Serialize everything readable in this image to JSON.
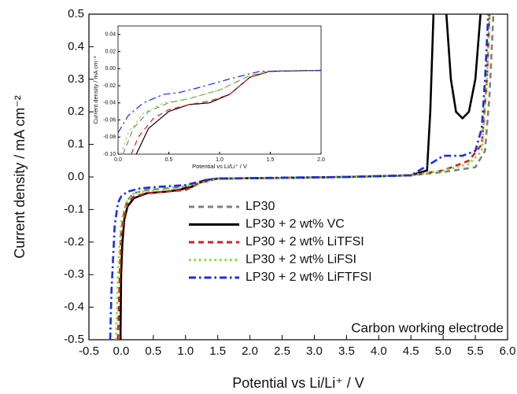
{
  "chart_data": [
    {
      "type": "line",
      "x_label": "Potential vs Li/Li⁺ / V",
      "y_label": "Current density / mA cm⁻²",
      "annotation": "Carbon working electrode",
      "legend": "center",
      "xlim": [
        -0.5,
        6.0
      ],
      "xticks": [
        -0.5,
        {
          "value": 0,
          "label": "0.0"
        },
        0.5,
        {
          "value": 1,
          "label": "1.0"
        },
        1.5,
        {
          "value": 2,
          "label": "2.0"
        },
        2.5,
        {
          "value": 3,
          "label": "3.0"
        },
        3.5,
        {
          "value": 4,
          "label": "4.0"
        },
        4.5,
        {
          "value": 5,
          "label": "5.0"
        },
        5.5,
        {
          "value": 6,
          "label": "6.0"
        }
      ],
      "ylim": [
        -0.5,
        0.5
      ],
      "yticks": [
        -0.5,
        -0.4,
        -0.3,
        -0.2,
        -0.1,
        {
          "value": 0,
          "label": "0.0"
        },
        0.1,
        0.2,
        0.3,
        0.4,
        0.5
      ],
      "series": [
        {
          "name": "LP30",
          "color": "#808080",
          "dash": "dash",
          "x": [
            -0.05,
            -0.02,
            0.0,
            0.05,
            0.1,
            0.2,
            0.4,
            0.7,
            1.0,
            1.3,
            1.5,
            2.5,
            3.5,
            4.5,
            5.0,
            5.5,
            5.65,
            5.72,
            5.78
          ],
          "values": [
            -0.5,
            -0.3,
            -0.17,
            -0.1,
            -0.07,
            -0.05,
            -0.04,
            -0.035,
            -0.03,
            -0.01,
            -0.005,
            -0.003,
            0,
            0.005,
            0.015,
            0.03,
            0.08,
            0.25,
            0.5
          ]
        },
        {
          "name": "LP30 + 2 wt% VC",
          "color": "#000000",
          "dash": "solid",
          "x": [
            -0.01,
            0.0,
            0.02,
            0.05,
            0.1,
            0.2,
            0.4,
            0.7,
            0.9,
            1.1,
            1.3,
            1.5,
            2.5,
            3.5,
            4.5,
            4.75,
            4.8,
            4.85,
            4.95,
            5.05,
            5.12,
            5.2,
            5.3,
            5.4,
            5.5,
            5.58
          ],
          "values": [
            -0.5,
            -0.3,
            -0.2,
            -0.13,
            -0.09,
            -0.065,
            -0.05,
            -0.045,
            -0.04,
            -0.03,
            -0.01,
            -0.005,
            -0.003,
            0,
            0.005,
            0.02,
            0.2,
            0.5,
            null,
            0.5,
            0.3,
            0.2,
            0.18,
            0.2,
            0.3,
            0.5
          ]
        },
        {
          "name": "LP30 + 2 wt% LiTFSI",
          "color": "#d42020",
          "dash": "dash",
          "x": [
            -0.05,
            -0.02,
            0.0,
            0.05,
            0.1,
            0.2,
            0.4,
            0.7,
            1.0,
            1.2,
            1.5,
            2.5,
            3.5,
            4.5,
            5.0,
            5.4,
            5.6,
            5.68,
            5.72
          ],
          "values": [
            -0.5,
            -0.3,
            -0.18,
            -0.12,
            -0.08,
            -0.06,
            -0.05,
            -0.045,
            -0.04,
            -0.02,
            -0.005,
            -0.003,
            0,
            0.005,
            0.02,
            0.05,
            0.1,
            0.3,
            0.5
          ]
        },
        {
          "name": "LP30 + 2 wt% LiFSI",
          "color": "#77e030",
          "dash": "dot",
          "x": [
            -0.08,
            -0.05,
            -0.02,
            0.0,
            0.05,
            0.1,
            0.2,
            0.5,
            0.8,
            1.2,
            1.5,
            2.5,
            3.5,
            4.5,
            5.0,
            5.4,
            5.6,
            5.68,
            5.72
          ],
          "values": [
            -0.5,
            -0.3,
            -0.2,
            -0.14,
            -0.1,
            -0.07,
            -0.05,
            -0.04,
            -0.035,
            -0.02,
            -0.005,
            -0.003,
            0,
            0.005,
            0.02,
            0.04,
            0.08,
            0.3,
            0.5
          ]
        },
        {
          "name": "LP30 + 2 wt% LiFTFSI",
          "color": "#1a2ee0",
          "dash": "dashdot",
          "x": [
            -0.17,
            -0.15,
            -0.1,
            -0.05,
            0.0,
            0.1,
            0.3,
            0.6,
            1.0,
            1.3,
            1.5,
            2.5,
            3.5,
            4.5,
            4.8,
            5.0,
            5.3,
            5.5,
            5.6,
            5.65,
            5.7
          ],
          "values": [
            -0.5,
            -0.35,
            -0.15,
            -0.08,
            -0.06,
            -0.045,
            -0.035,
            -0.03,
            -0.025,
            -0.01,
            -0.005,
            -0.002,
            0,
            0.005,
            0.04,
            0.065,
            0.065,
            0.08,
            0.15,
            0.3,
            0.5
          ]
        }
      ]
    },
    {
      "type": "line",
      "x_label": "Potential vs Li/Li⁺ / V",
      "y_label": "Current density / mA cm⁻²",
      "xlim": [
        0,
        2
      ],
      "xticks": [
        {
          "value": 0,
          "label": "0.0"
        },
        0.5,
        {
          "value": 1,
          "label": "1.0"
        },
        1.5,
        {
          "value": 2,
          "label": "2.0"
        }
      ],
      "ylim": [
        -0.1,
        0.05
      ],
      "yticks": [
        {
          "value": -0.1,
          "label": "-0.10"
        },
        -0.08,
        -0.06,
        -0.04,
        -0.02,
        {
          "value": 0,
          "label": "0.00"
        },
        0.02,
        0.04
      ],
      "series": [
        {
          "color": "#808080",
          "dash": "dash",
          "x": [
            0.05,
            0.15,
            0.3,
            0.5,
            0.7,
            1.0,
            1.3,
            1.5,
            2.0
          ],
          "values": [
            -0.1,
            -0.07,
            -0.05,
            -0.04,
            -0.035,
            -0.025,
            -0.008,
            -0.003,
            -0.002
          ]
        },
        {
          "color": "#000000",
          "dash": "solid",
          "x": [
            0.18,
            0.3,
            0.5,
            0.7,
            0.9,
            1.1,
            1.3,
            1.5,
            2.0
          ],
          "values": [
            -0.1,
            -0.07,
            -0.05,
            -0.042,
            -0.04,
            -0.03,
            -0.01,
            -0.003,
            -0.002
          ]
        },
        {
          "color": "#d42020",
          "dash": "dash",
          "x": [
            0.13,
            0.2,
            0.35,
            0.5,
            0.7,
            0.9,
            1.1,
            1.3,
            1.5,
            2.0
          ],
          "values": [
            -0.1,
            -0.08,
            -0.058,
            -0.048,
            -0.042,
            -0.038,
            -0.03,
            -0.01,
            -0.003,
            -0.002
          ]
        },
        {
          "color": "#77e030",
          "dash": "dot",
          "x": [
            0.03,
            0.1,
            0.25,
            0.45,
            0.7,
            1.0,
            1.3,
            1.5,
            2.0
          ],
          "values": [
            -0.1,
            -0.075,
            -0.052,
            -0.04,
            -0.035,
            -0.025,
            -0.008,
            -0.003,
            -0.002
          ]
        },
        {
          "color": "#1a2ee0",
          "dash": "dashdot",
          "x": [
            0.0,
            0.1,
            0.25,
            0.45,
            0.6,
            0.8,
            1.1,
            1.4,
            1.6,
            2.0
          ],
          "values": [
            -0.075,
            -0.055,
            -0.04,
            -0.03,
            -0.028,
            -0.022,
            -0.012,
            -0.003,
            -0.003,
            -0.002
          ]
        }
      ]
    }
  ]
}
